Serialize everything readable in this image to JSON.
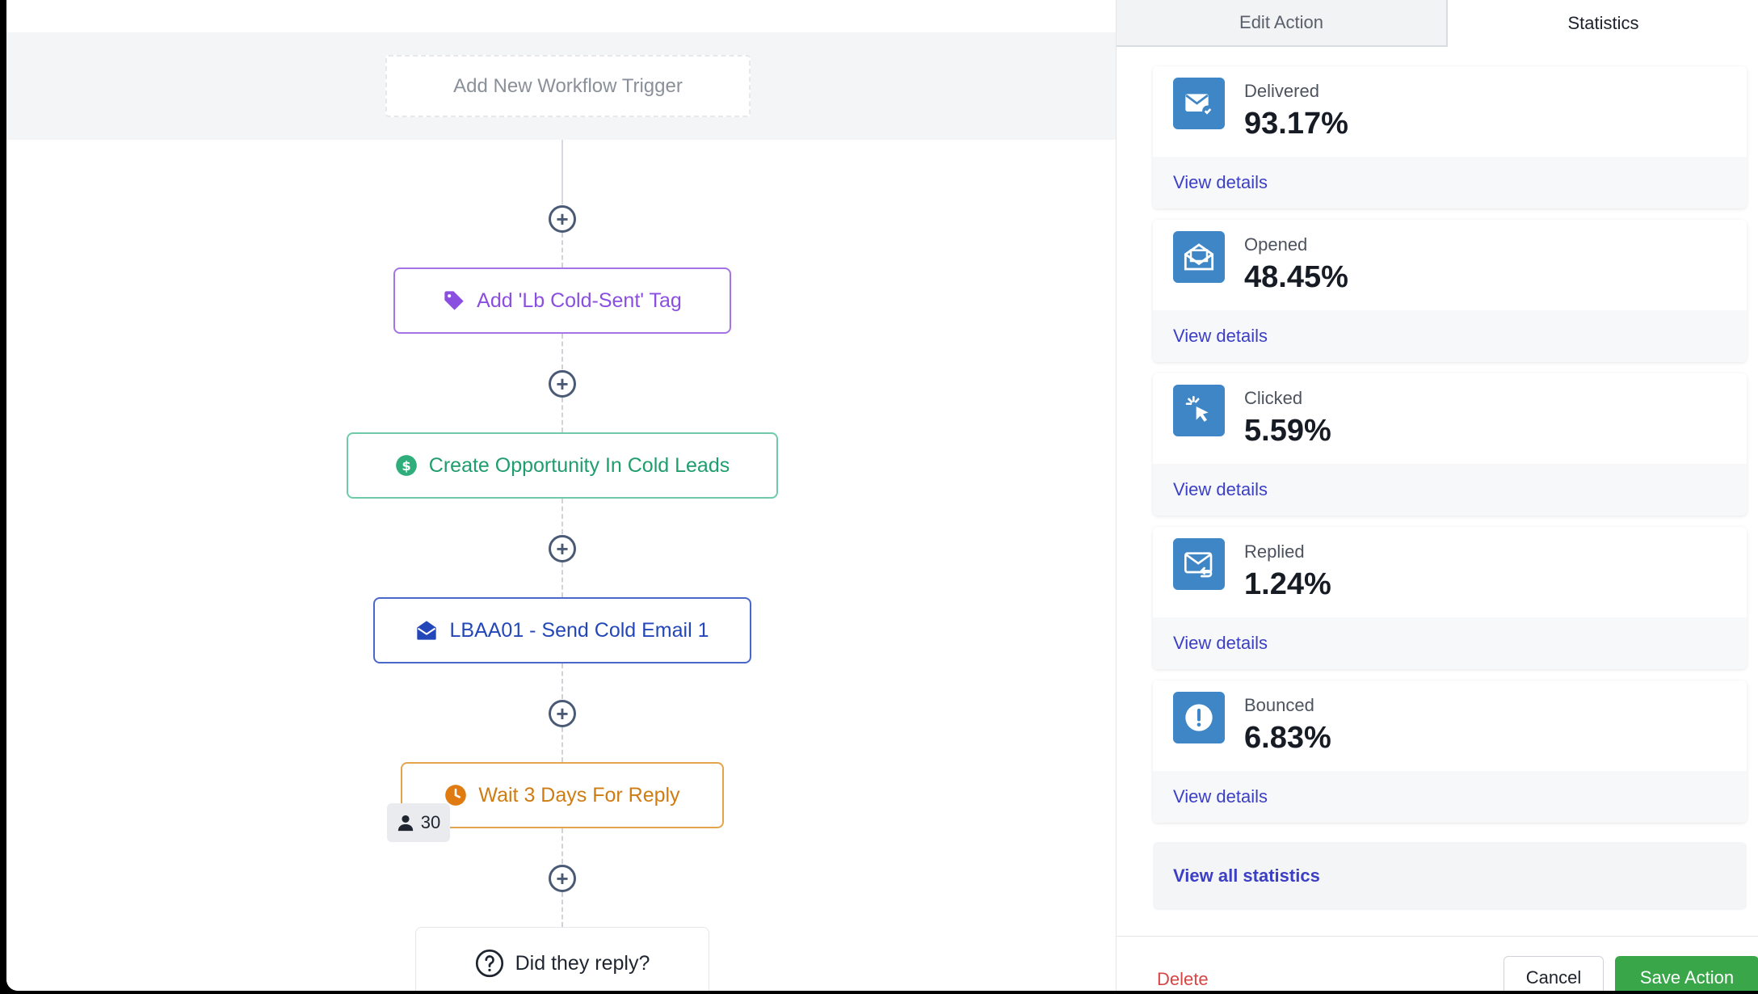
{
  "workflow": {
    "trigger_placeholder": "Add New Workflow Trigger",
    "steps": [
      {
        "type": "tag",
        "label": "Add 'Lb Cold-Sent' Tag",
        "icon": "tag-icon",
        "color": "#8a4fe0"
      },
      {
        "type": "opportunity",
        "label": "Create Opportunity In Cold Leads",
        "icon": "dollar-icon",
        "color": "#1f9d6d"
      },
      {
        "type": "email",
        "label": "LBAA01 - Send Cold Email 1",
        "icon": "envelope-open-icon",
        "color": "#2347b8"
      },
      {
        "type": "wait",
        "label": "Wait 3 Days For Reply",
        "icon": "clock-icon",
        "color": "#cf7c12",
        "contacts_waiting": "30"
      },
      {
        "type": "condition",
        "label": "Did they reply?",
        "icon": "question-icon"
      }
    ]
  },
  "panel": {
    "tabs": [
      {
        "label": "Edit Action",
        "active": false
      },
      {
        "label": "Statistics",
        "active": true
      }
    ],
    "stats": [
      {
        "label": "Delivered",
        "value": "93.17%",
        "link": "View details",
        "icon": "mail-check-icon"
      },
      {
        "label": "Opened",
        "value": "48.45%",
        "link": "View details",
        "icon": "mail-open-icon"
      },
      {
        "label": "Clicked",
        "value": "5.59%",
        "link": "View details",
        "icon": "pointer-click-icon"
      },
      {
        "label": "Replied",
        "value": "1.24%",
        "link": "View details",
        "icon": "mail-reply-icon"
      },
      {
        "label": "Bounced",
        "value": "6.83%",
        "link": "View details",
        "icon": "alert-icon"
      }
    ],
    "view_all": "View all statistics",
    "footer": {
      "delete": "Delete",
      "cancel": "Cancel",
      "save": "Save Action"
    }
  },
  "colors": {
    "stat_icon_bg": "#3e86c6",
    "link": "#3b3fc4",
    "save": "#3aa64a",
    "delete": "#d64545"
  }
}
